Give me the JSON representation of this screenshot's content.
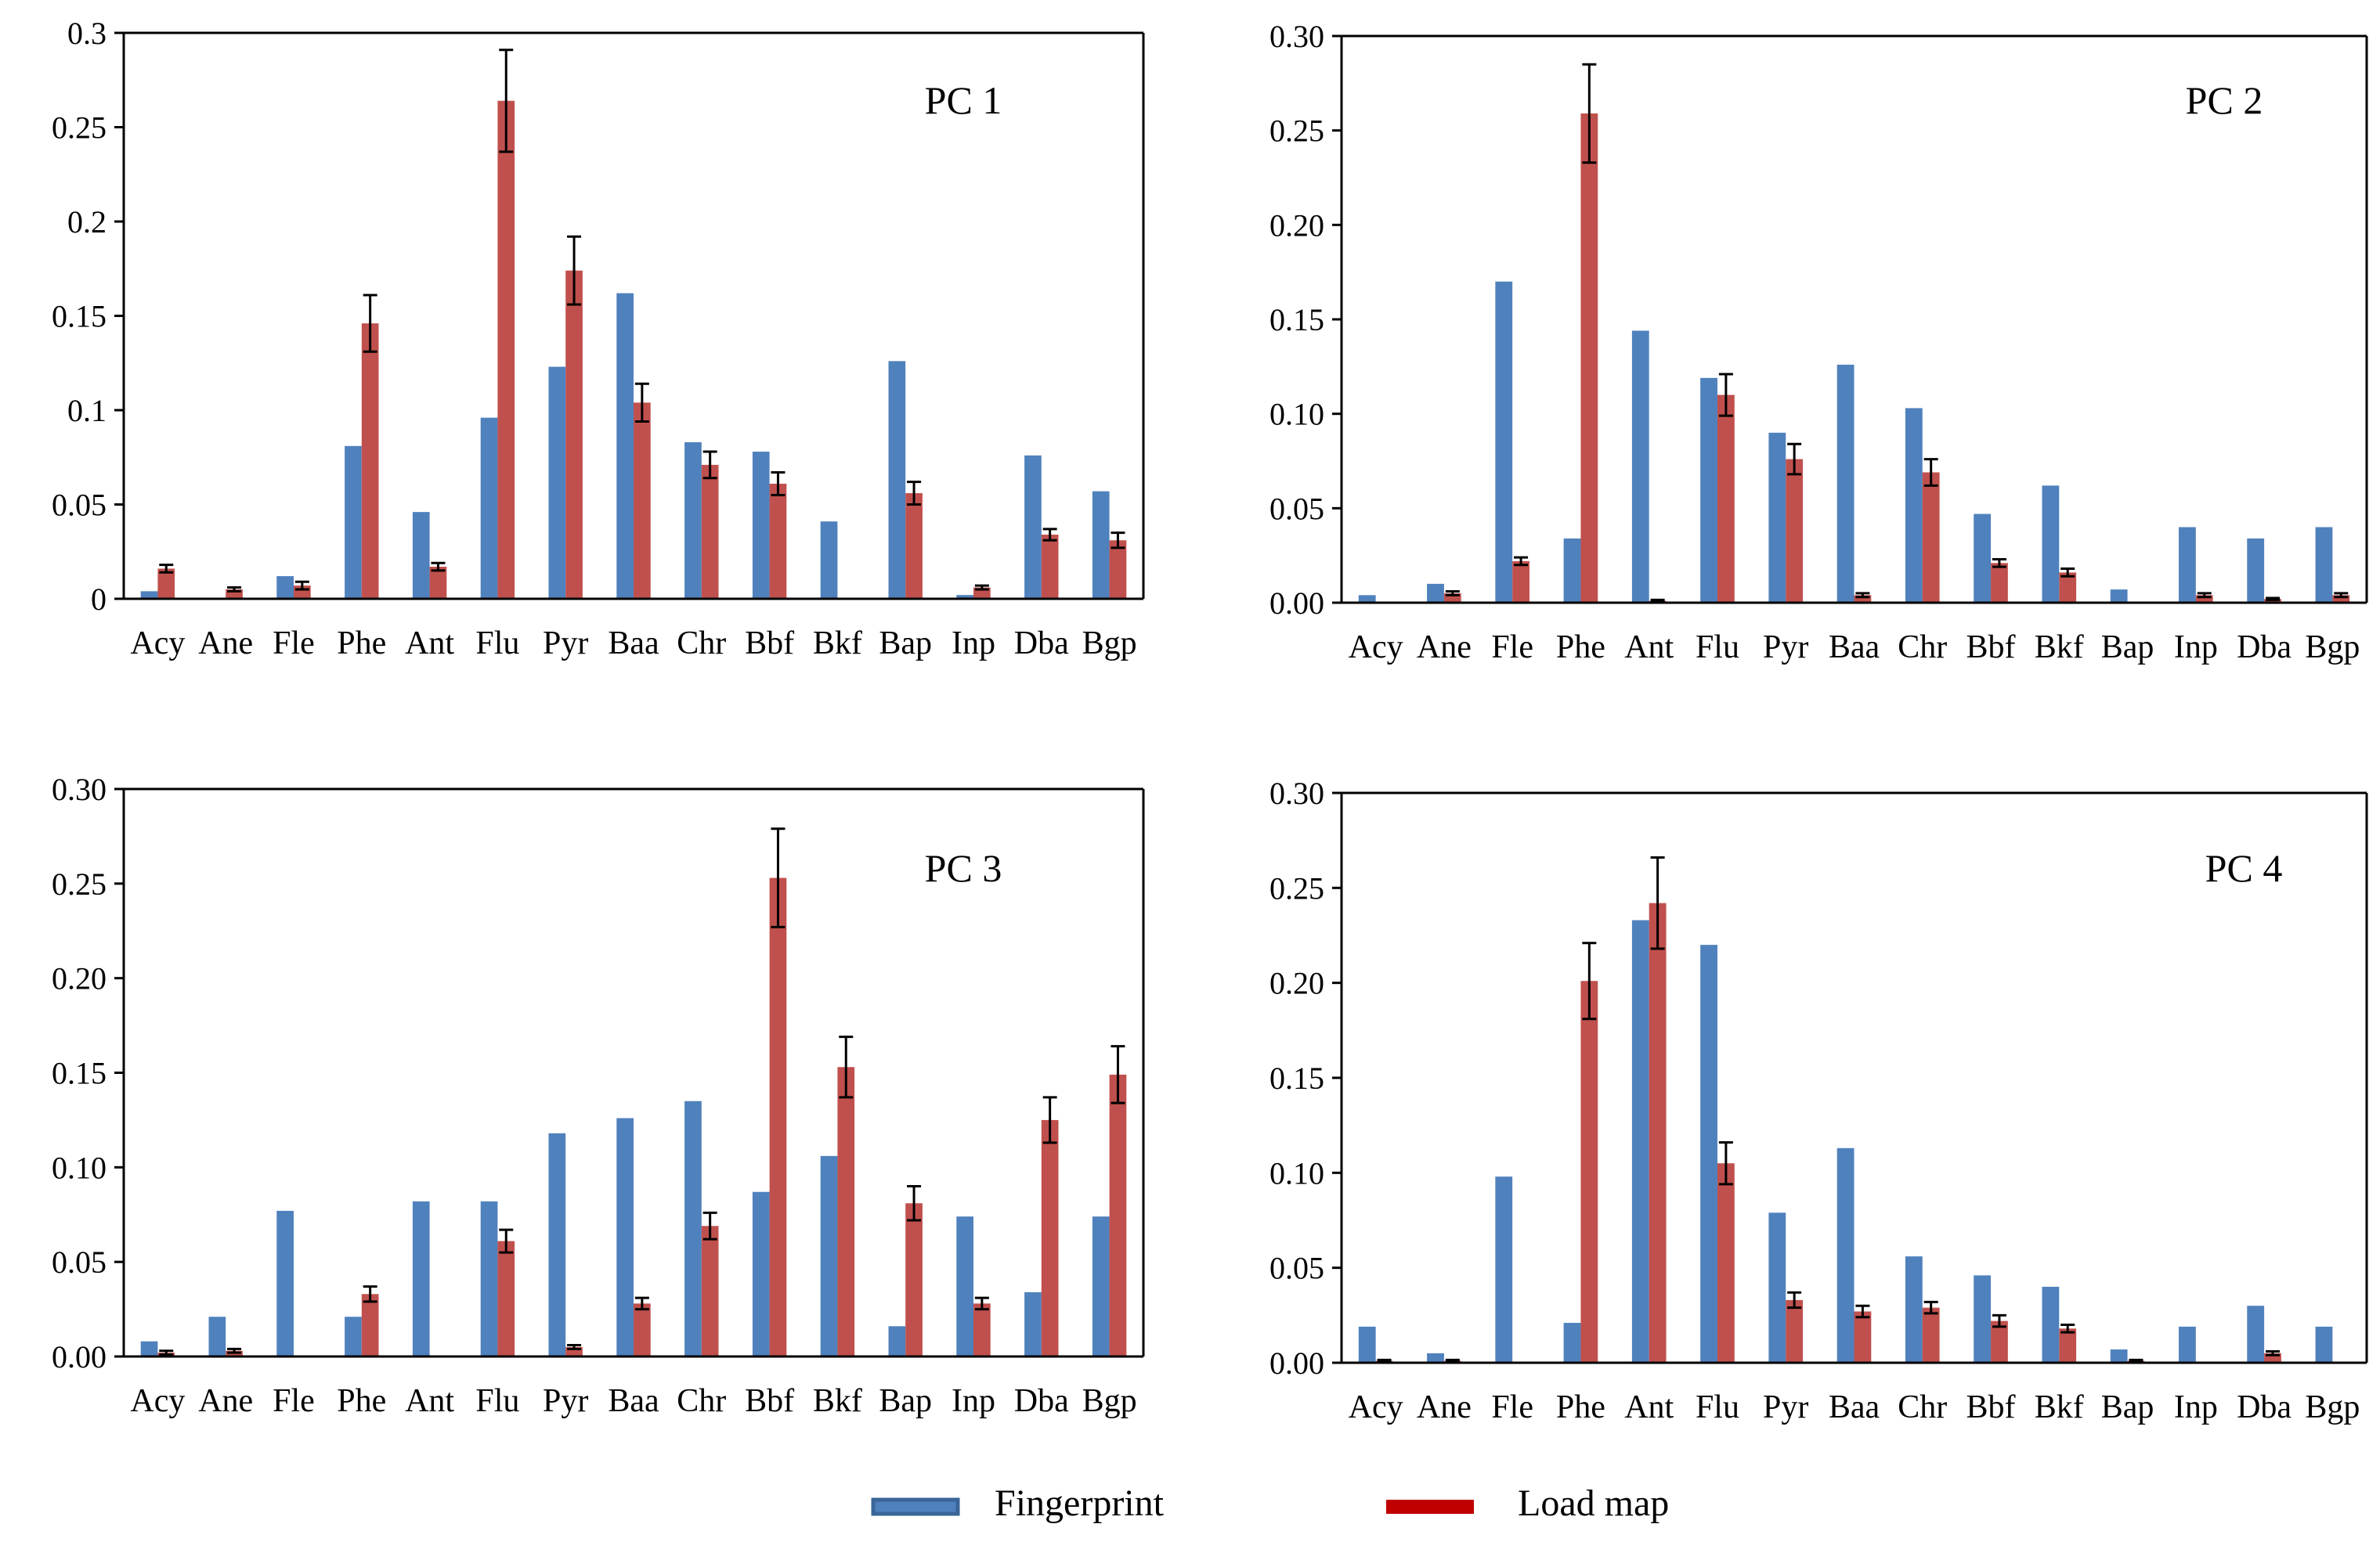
{
  "legend": [
    {
      "key": "fingerprint",
      "label": "Fingerprint",
      "color": "#4F81BD",
      "edge": "#3A6598"
    },
    {
      "key": "loadmap",
      "label": "Load map",
      "color": "#C0504D",
      "edge": "#C00000"
    }
  ],
  "chart_data": [
    {
      "type": "bar",
      "title": "PC 1",
      "categories": [
        "Acy",
        "Ane",
        "Fle",
        "Phe",
        "Ant",
        "Flu",
        "Pyr",
        "Baa",
        "Chr",
        "Bbf",
        "Bkf",
        "Bap",
        "Inp",
        "Dba",
        "Bgp"
      ],
      "ylim": [
        0,
        0.3
      ],
      "yticks": [
        0,
        0.05,
        0.1,
        0.15,
        0.2,
        0.25,
        0.3
      ],
      "yticklabels": [
        "0",
        "0.05",
        "0.1",
        "0.15",
        "0.2",
        "0.25",
        "0.3"
      ],
      "series": [
        {
          "name": "Fingerprint",
          "values": [
            0.004,
            0,
            0.012,
            0.081,
            0.046,
            0.096,
            0.123,
            0.162,
            0.083,
            0.078,
            0.041,
            0.126,
            0.002,
            0.076,
            0.057
          ]
        },
        {
          "name": "Load map",
          "values": [
            0.016,
            0.005,
            0.007,
            0.146,
            0.017,
            0.264,
            0.174,
            0.104,
            0.071,
            0.061,
            0,
            0.056,
            0.006,
            0.034,
            0.031
          ],
          "errors": [
            0.002,
            0.001,
            0.002,
            0.015,
            0.002,
            0.027,
            0.018,
            0.01,
            0.007,
            0.006,
            0,
            0.006,
            0.001,
            0.003,
            0.004
          ]
        }
      ]
    },
    {
      "type": "bar",
      "title": "PC 2",
      "categories": [
        "Acy",
        "Ane",
        "Fle",
        "Phe",
        "Ant",
        "Flu",
        "Pyr",
        "Baa",
        "Chr",
        "Bbf",
        "Bkf",
        "Bap",
        "Inp",
        "Dba",
        "Bgp"
      ],
      "ylim": [
        0,
        0.3
      ],
      "yticks": [
        0,
        0.05,
        0.1,
        0.15,
        0.2,
        0.25,
        0.3
      ],
      "yticklabels": [
        "0.00",
        "0.05",
        "0.10",
        "0.15",
        "0.20",
        "0.25",
        "0.30"
      ],
      "series": [
        {
          "name": "Fingerprint",
          "values": [
            0.004,
            0.01,
            0.17,
            0.034,
            0.144,
            0.119,
            0.09,
            0.126,
            0.103,
            0.047,
            0.062,
            0.007,
            0.04,
            0.034,
            0.04
          ]
        },
        {
          "name": "Load map",
          "values": [
            0,
            0.005,
            0.022,
            0.259,
            0.001,
            0.11,
            0.076,
            0.004,
            0.069,
            0.021,
            0.016,
            0,
            0.004,
            0.002,
            0.004
          ],
          "errors": [
            0,
            0.001,
            0.002,
            0.026,
            0.0005,
            0.011,
            0.008,
            0.001,
            0.007,
            0.002,
            0.002,
            0,
            0.001,
            0.0005,
            0.001
          ]
        }
      ]
    },
    {
      "type": "bar",
      "title": "PC 3",
      "categories": [
        "Acy",
        "Ane",
        "Fle",
        "Phe",
        "Ant",
        "Flu",
        "Pyr",
        "Baa",
        "Chr",
        "Bbf",
        "Bkf",
        "Bap",
        "Inp",
        "Dba",
        "Bgp"
      ],
      "ylim": [
        0,
        0.3
      ],
      "yticks": [
        0,
        0.05,
        0.1,
        0.15,
        0.2,
        0.25,
        0.3
      ],
      "yticklabels": [
        "0.00",
        "0.05",
        "0.10",
        "0.15",
        "0.20",
        "0.25",
        "0.30"
      ],
      "series": [
        {
          "name": "Fingerprint",
          "values": [
            0.008,
            0.021,
            0.077,
            0.021,
            0.082,
            0.082,
            0.118,
            0.126,
            0.135,
            0.087,
            0.106,
            0.016,
            0.074,
            0.034,
            0.074
          ]
        },
        {
          "name": "Load map",
          "values": [
            0.002,
            0.003,
            0,
            0.033,
            0,
            0.061,
            0.005,
            0.028,
            0.069,
            0.253,
            0.153,
            0.081,
            0.028,
            0.125,
            0.149
          ],
          "errors": [
            0.001,
            0.001,
            0,
            0.004,
            0,
            0.006,
            0.001,
            0.003,
            0.007,
            0.026,
            0.016,
            0.009,
            0.003,
            0.012,
            0.015
          ]
        }
      ]
    },
    {
      "type": "bar",
      "title": "PC 4",
      "categories": [
        "Acy",
        "Ane",
        "Fle",
        "Phe",
        "Ant",
        "Flu",
        "Pyr",
        "Baa",
        "Chr",
        "Bbf",
        "Bkf",
        "Bap",
        "Inp",
        "Dba",
        "Bgp"
      ],
      "ylim": [
        0,
        0.3
      ],
      "yticks": [
        0,
        0.05,
        0.1,
        0.15,
        0.2,
        0.25,
        0.3
      ],
      "yticklabels": [
        "0.00",
        "0.05",
        "0.10",
        "0.15",
        "0.20",
        "0.25",
        "0.30"
      ],
      "series": [
        {
          "name": "Fingerprint",
          "values": [
            0.019,
            0.005,
            0.098,
            0.021,
            0.233,
            0.22,
            0.079,
            0.113,
            0.056,
            0.046,
            0.04,
            0.007,
            0.019,
            0.03,
            0.019
          ]
        },
        {
          "name": "Load map",
          "values": [
            0.001,
            0.001,
            0,
            0.201,
            0.242,
            0.105,
            0.033,
            0.027,
            0.029,
            0.022,
            0.018,
            0.001,
            0,
            0.005,
            0
          ],
          "errors": [
            0.0005,
            0.0005,
            0,
            0.02,
            0.024,
            0.011,
            0.004,
            0.003,
            0.003,
            0.003,
            0.002,
            0.0005,
            0,
            0.001,
            0
          ]
        }
      ]
    }
  ]
}
